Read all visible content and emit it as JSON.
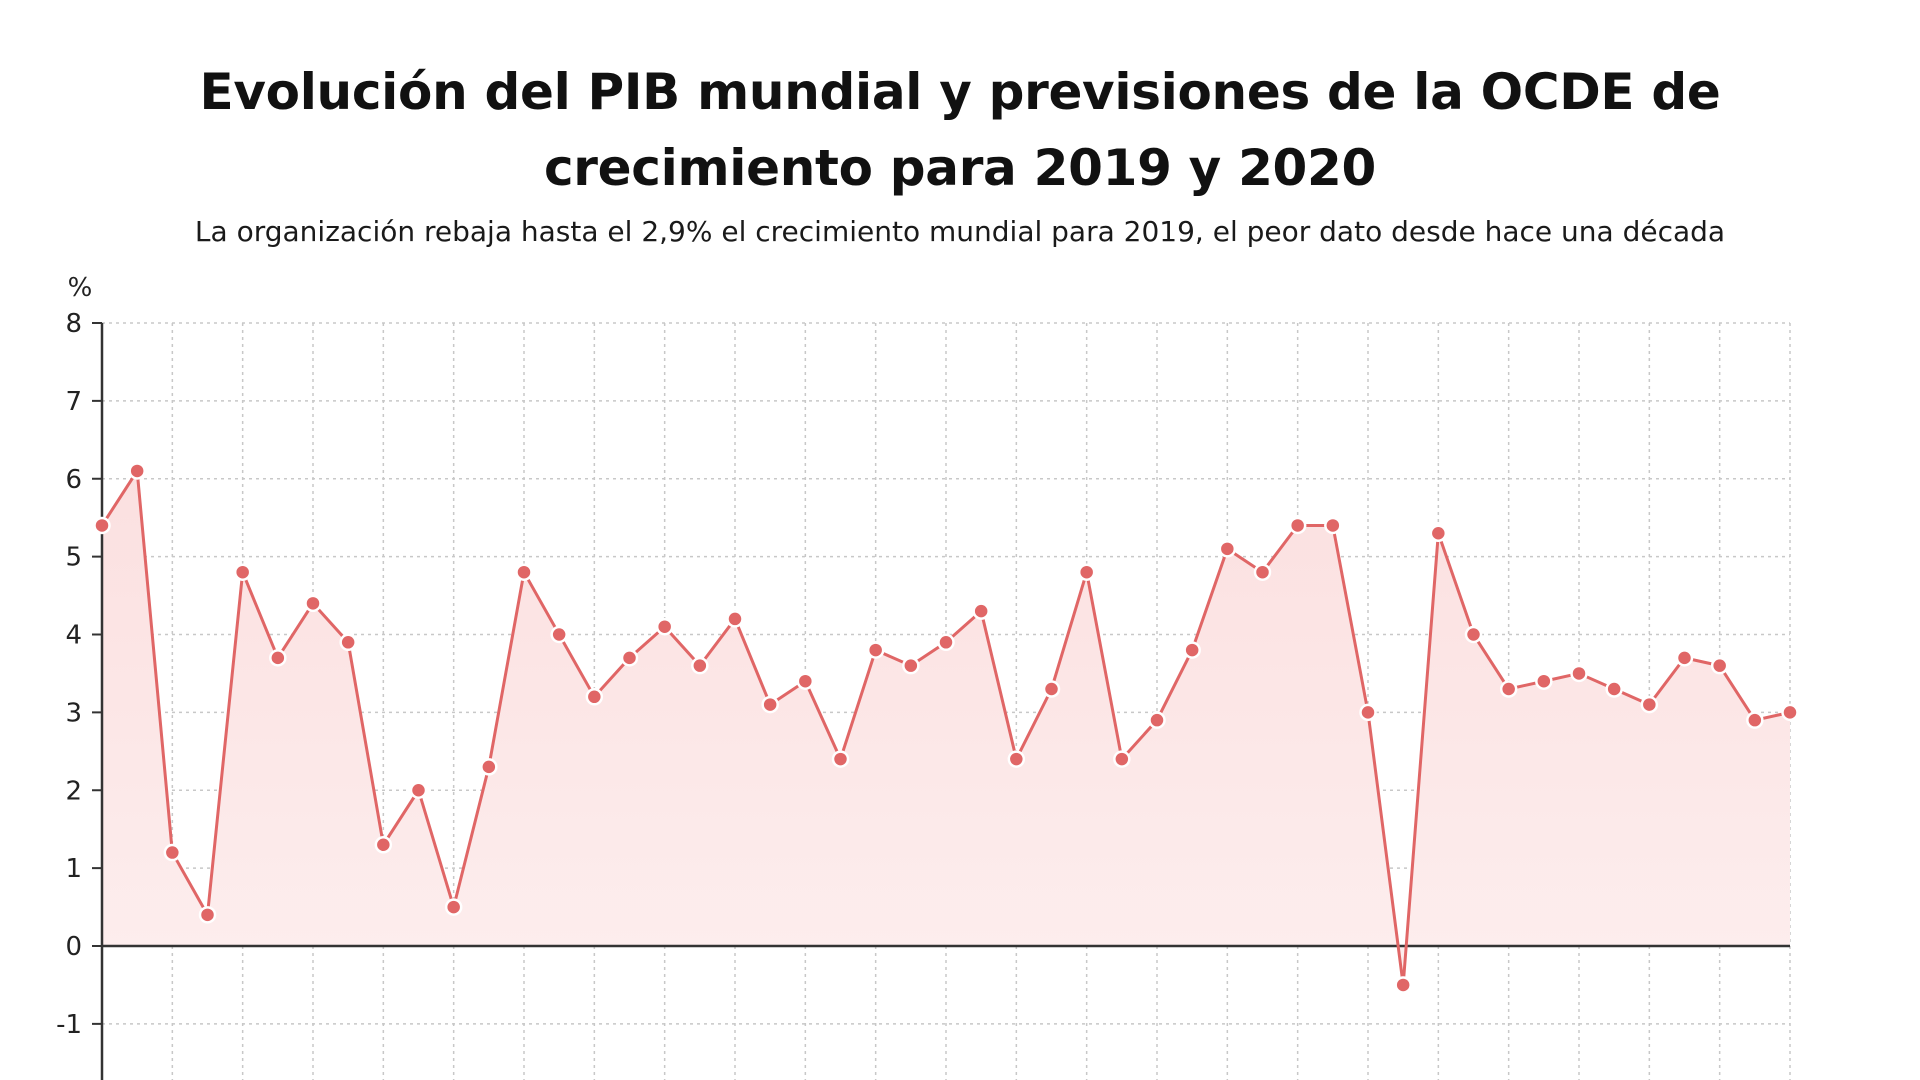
{
  "title": "Evolución del PIB mundial y previsiones de la OCDE de crecimiento para 2019 y 2020",
  "subtitle": "La organización rebaja hasta el 2,9% el crecimiento mundial para 2019, el peor dato desde hace una década",
  "colors": {
    "line": "#e06666",
    "marker_fill": "#e06666",
    "marker_stroke": "#ffffff",
    "area_top": "#fbe0e0",
    "area_bottom": "#fdeeee",
    "grid": "#c8c8c8",
    "axis": "#333333"
  },
  "chart_data": {
    "type": "line",
    "title": "Evolución del PIB mundial y previsiones de la OCDE de crecimiento para 2019 y 2020",
    "subtitle": "La organización rebaja hasta el 2,9% el crecimiento mundial para 2019, el peor dato desde hace una década",
    "ylabel": "%",
    "xlabel": "",
    "yticks": [
      8,
      7,
      6,
      5,
      4,
      3,
      2,
      1,
      0,
      -1
    ],
    "ylim": [
      -1.8,
      8
    ],
    "grid": true,
    "area_fill": true,
    "series": [
      {
        "values": [
          5.4,
          6.1,
          1.2,
          0.4,
          4.8,
          3.7,
          4.4,
          3.9,
          1.3,
          2.0,
          0.5,
          2.3,
          4.8,
          4.0,
          3.2,
          3.7,
          4.1,
          3.6,
          4.2,
          3.1,
          3.4,
          2.4,
          3.8,
          3.6,
          3.9,
          4.3,
          2.4,
          3.3,
          4.8,
          2.4,
          2.9,
          3.8,
          5.1,
          4.8,
          5.4,
          5.4,
          3.0,
          -0.5,
          5.3,
          4.0,
          3.3,
          3.4,
          3.5,
          3.3,
          3.1,
          3.7,
          3.6,
          2.9,
          3.0
        ]
      }
    ]
  }
}
